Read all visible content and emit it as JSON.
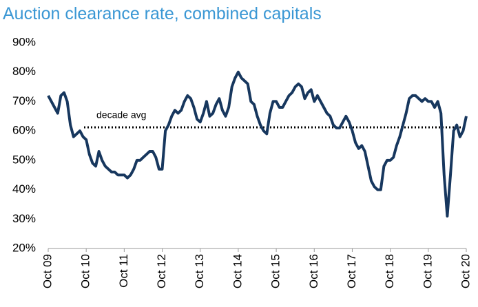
{
  "chart_data": {
    "type": "line",
    "title": "Auction clearance rate, combined capitals",
    "annotation": "decade avg",
    "average": 61.2,
    "categories": [
      "Oct 09",
      null,
      null,
      null,
      null,
      null,
      null,
      null,
      null,
      null,
      null,
      null,
      "Oct 10",
      null,
      null,
      null,
      null,
      null,
      null,
      null,
      null,
      null,
      null,
      null,
      "Oct 11",
      null,
      null,
      null,
      null,
      null,
      null,
      null,
      null,
      null,
      null,
      null,
      "Oct 12",
      null,
      null,
      null,
      null,
      null,
      null,
      null,
      null,
      null,
      null,
      null,
      "Oct 13",
      null,
      null,
      null,
      null,
      null,
      null,
      null,
      null,
      null,
      null,
      null,
      "Oct 14",
      null,
      null,
      null,
      null,
      null,
      null,
      null,
      null,
      null,
      null,
      null,
      "Oct 15",
      null,
      null,
      null,
      null,
      null,
      null,
      null,
      null,
      null,
      null,
      null,
      "Oct 16",
      null,
      null,
      null,
      null,
      null,
      null,
      null,
      null,
      null,
      null,
      null,
      "Oct 17",
      null,
      null,
      null,
      null,
      null,
      null,
      null,
      null,
      null,
      null,
      null,
      "Oct 18",
      null,
      null,
      null,
      null,
      null,
      null,
      null,
      null,
      null,
      null,
      null,
      "Oct 19",
      null,
      null,
      null,
      null,
      null,
      null,
      null,
      null,
      null,
      null,
      null,
      "Oct 20"
    ],
    "series": [
      {
        "name": "Clearance rate",
        "color": "#17375e",
        "values": [
          72,
          70,
          68,
          66,
          72,
          73,
          70,
          62,
          58,
          59,
          60,
          58,
          57,
          52,
          49,
          48,
          53,
          50,
          48,
          47,
          46,
          46,
          45,
          45,
          45,
          44,
          45,
          47,
          50,
          50,
          51,
          52,
          53,
          53,
          51,
          47,
          47,
          60,
          62,
          65,
          67,
          66,
          67,
          70,
          72,
          71,
          68,
          64,
          63,
          66,
          70,
          65,
          66,
          69,
          71,
          67,
          65,
          68,
          75,
          78,
          80,
          78,
          77,
          76,
          70,
          69,
          65,
          62,
          60,
          59,
          66,
          70,
          70,
          68,
          68,
          70,
          72,
          73,
          75,
          76,
          75,
          71,
          73,
          74,
          70,
          72,
          70,
          68,
          66,
          65,
          62,
          61,
          61,
          63,
          65,
          63,
          60,
          56,
          54,
          55,
          53,
          48,
          43,
          41,
          40,
          40,
          48,
          50,
          50,
          51,
          55,
          58,
          62,
          66,
          71,
          72,
          72,
          71,
          70,
          71,
          70,
          70,
          68,
          70,
          66,
          45,
          31,
          45,
          60,
          62,
          58,
          60,
          65
        ]
      }
    ],
    "ylim": [
      20,
      90
    ],
    "yticks": [
      {
        "value": 20,
        "label": "20%"
      },
      {
        "value": 30,
        "label": "30%"
      },
      {
        "value": 40,
        "label": "40%"
      },
      {
        "value": 50,
        "label": "50%"
      },
      {
        "value": 60,
        "label": "60%"
      },
      {
        "value": 70,
        "label": "70%"
      },
      {
        "value": 80,
        "label": "80%"
      },
      {
        "value": 90,
        "label": "90%"
      }
    ]
  }
}
